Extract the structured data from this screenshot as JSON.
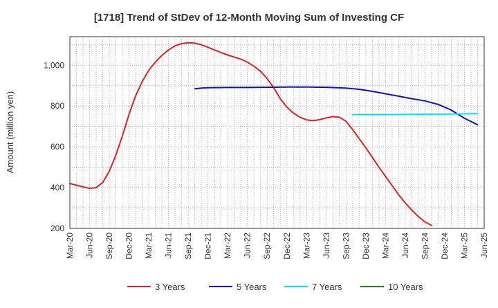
{
  "chart_data": {
    "type": "line",
    "title": "[1718]  Trend of StDev of 12-Month Moving Sum of Investing CF",
    "xlabel": "",
    "ylabel": "Amount (million yen)",
    "x_ticks": [
      "Mar-20",
      "Jun-20",
      "Sep-20",
      "Dec-20",
      "Mar-21",
      "Jun-21",
      "Sep-21",
      "Dec-21",
      "Mar-22",
      "Jun-22",
      "Sep-22",
      "Dec-22",
      "Mar-23",
      "Jun-23",
      "Sep-23",
      "Dec-23",
      "Mar-24",
      "Jun-24",
      "Sep-24",
      "Dec-24",
      "Mar-25",
      "Jun-25"
    ],
    "y_ticks": [
      200,
      400,
      600,
      800,
      "1,000"
    ],
    "ylim": [
      200,
      1140
    ],
    "xlim": [
      "2020-03",
      "2025-06"
    ],
    "grid": true,
    "legend_position": "bottom",
    "series": [
      {
        "name": "3 Years",
        "color": "#e02020",
        "points": [
          [
            "2020-03",
            420
          ],
          [
            "2020-04",
            412
          ],
          [
            "2020-05",
            404
          ],
          [
            "2020-06",
            396
          ],
          [
            "2020-07",
            400
          ],
          [
            "2020-08",
            425
          ],
          [
            "2020-09",
            480
          ],
          [
            "2020-10",
            560
          ],
          [
            "2020-11",
            655
          ],
          [
            "2020-12",
            760
          ],
          [
            "2021-01",
            850
          ],
          [
            "2021-02",
            920
          ],
          [
            "2021-03",
            975
          ],
          [
            "2021-04",
            1015
          ],
          [
            "2021-05",
            1048
          ],
          [
            "2021-06",
            1075
          ],
          [
            "2021-07",
            1095
          ],
          [
            "2021-08",
            1106
          ],
          [
            "2021-09",
            1110
          ],
          [
            "2021-10",
            1108
          ],
          [
            "2021-11",
            1100
          ],
          [
            "2021-12",
            1088
          ],
          [
            "2022-01",
            1075
          ],
          [
            "2022-02",
            1062
          ],
          [
            "2022-03",
            1050
          ],
          [
            "2022-04",
            1040
          ],
          [
            "2022-05",
            1030
          ],
          [
            "2022-06",
            1015
          ],
          [
            "2022-07",
            995
          ],
          [
            "2022-08",
            970
          ],
          [
            "2022-09",
            935
          ],
          [
            "2022-10",
            890
          ],
          [
            "2022-11",
            835
          ],
          [
            "2022-12",
            795
          ],
          [
            "2023-01",
            765
          ],
          [
            "2023-02",
            745
          ],
          [
            "2023-03",
            732
          ],
          [
            "2023-04",
            728
          ],
          [
            "2023-05",
            733
          ],
          [
            "2023-06",
            742
          ],
          [
            "2023-07",
            748
          ],
          [
            "2023-08",
            745
          ],
          [
            "2023-09",
            725
          ],
          [
            "2023-10",
            685
          ],
          [
            "2023-11",
            640
          ],
          [
            "2023-12",
            595
          ],
          [
            "2024-01",
            548
          ],
          [
            "2024-02",
            500
          ],
          [
            "2024-03",
            455
          ],
          [
            "2024-04",
            410
          ],
          [
            "2024-05",
            365
          ],
          [
            "2024-06",
            325
          ],
          [
            "2024-07",
            290
          ],
          [
            "2024-08",
            258
          ],
          [
            "2024-09",
            232
          ],
          [
            "2024-10",
            215
          ]
        ]
      },
      {
        "name": "5 Years",
        "color": "#1010c0",
        "points": [
          [
            "2021-10",
            884
          ],
          [
            "2021-11",
            888
          ],
          [
            "2021-12",
            890
          ],
          [
            "2022-03",
            891
          ],
          [
            "2022-06",
            891
          ],
          [
            "2022-09",
            892
          ],
          [
            "2022-12",
            893
          ],
          [
            "2023-03",
            893
          ],
          [
            "2023-06",
            892
          ],
          [
            "2023-09",
            888
          ],
          [
            "2023-11",
            882
          ],
          [
            "2024-01",
            872
          ],
          [
            "2024-03",
            860
          ],
          [
            "2024-05",
            848
          ],
          [
            "2024-07",
            836
          ],
          [
            "2024-09",
            825
          ],
          [
            "2024-11",
            808
          ],
          [
            "2025-01",
            780
          ],
          [
            "2025-03",
            740
          ],
          [
            "2025-05",
            708
          ]
        ]
      },
      {
        "name": "7 Years",
        "color": "#00e5ff",
        "points": [
          [
            "2023-10",
            758
          ],
          [
            "2024-01",
            758
          ],
          [
            "2024-04",
            758
          ],
          [
            "2024-07",
            759
          ],
          [
            "2024-10",
            760
          ],
          [
            "2025-01",
            761
          ],
          [
            "2025-03",
            762
          ],
          [
            "2025-05",
            763
          ]
        ]
      },
      {
        "name": "10 Years",
        "color": "#208020",
        "points": []
      }
    ]
  }
}
